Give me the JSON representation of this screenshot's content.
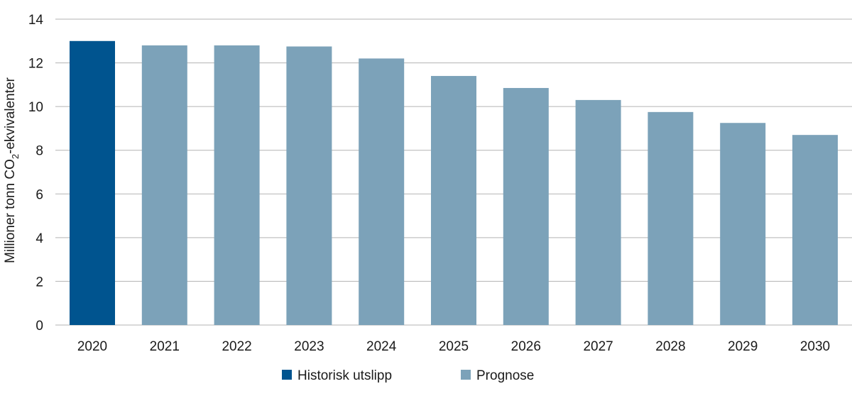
{
  "chart_data": {
    "type": "bar",
    "categories": [
      "2020",
      "2021",
      "2022",
      "2023",
      "2024",
      "2025",
      "2026",
      "2027",
      "2028",
      "2029",
      "2030"
    ],
    "values": [
      13.0,
      12.8,
      12.8,
      12.75,
      12.2,
      11.4,
      10.85,
      10.3,
      9.75,
      9.25,
      8.7
    ],
    "point_series": [
      "historisk",
      "prognose",
      "prognose",
      "prognose",
      "prognose",
      "prognose",
      "prognose",
      "prognose",
      "prognose",
      "prognose",
      "prognose"
    ],
    "ylabel": {
      "prefix": "Millioner tonn CO",
      "subscript": "2",
      "suffix": "-ekvivalenter"
    },
    "ylim": [
      0,
      14
    ],
    "yticks": [
      0,
      2,
      4,
      6,
      8,
      10,
      12,
      14
    ],
    "grid": true,
    "legend_position": "bottom",
    "legend": [
      {
        "key": "historisk",
        "name": "Historisk utslipp",
        "color": "#00548f"
      },
      {
        "key": "prognose",
        "name": "Prognose",
        "color": "#7ca2b9"
      }
    ]
  },
  "colors": {
    "grid": "#b3b3b3",
    "text": "#1a1a1a"
  }
}
